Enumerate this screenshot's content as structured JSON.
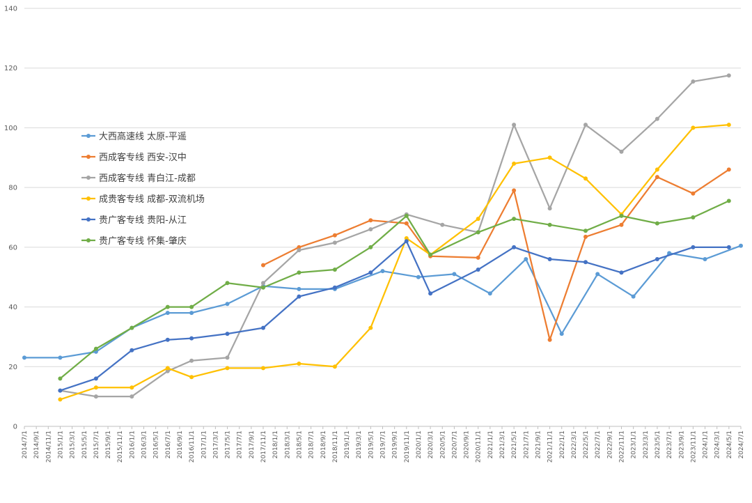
{
  "chart_data": {
    "type": "line",
    "title": "",
    "xlabel": "",
    "ylabel": "",
    "ylim": [
      0,
      140
    ],
    "yticks": [
      0,
      20,
      40,
      60,
      80,
      100,
      120,
      140
    ],
    "grid": true,
    "legend_position": "left",
    "x": [
      "2014/7/1",
      "2014/9/1",
      "2014/11/1",
      "2015/1/1",
      "2015/3/1",
      "2015/5/1",
      "2015/7/1",
      "2015/9/1",
      "2015/11/1",
      "2016/1/1",
      "2016/3/1",
      "2016/5/1",
      "2016/7/1",
      "2016/9/1",
      "2016/11/1",
      "2017/1/1",
      "2017/3/1",
      "2017/5/1",
      "2017/7/1",
      "2017/9/1",
      "2017/11/1",
      "2018/1/1",
      "2018/3/1",
      "2018/5/1",
      "2018/7/1",
      "2018/9/1",
      "2018/11/1",
      "2019/1/1",
      "2019/3/1",
      "2019/5/1",
      "2019/7/1",
      "2019/9/1",
      "2019/11/1",
      "2020/1/1",
      "2020/3/1",
      "2020/5/1",
      "2020/7/1",
      "2020/9/1",
      "2020/11/1",
      "2021/1/1",
      "2021/3/1",
      "2021/5/1",
      "2021/7/1",
      "2021/9/1",
      "2021/11/1",
      "2022/1/1",
      "2022/3/1",
      "2022/5/1",
      "2022/7/1",
      "2022/9/1",
      "2022/11/1",
      "2023/1/1",
      "2023/3/1",
      "2023/5/1",
      "2023/7/1",
      "2023/9/1",
      "2023/11/1",
      "2024/1/1",
      "2024/3/1",
      "2024/5/1",
      "2024/7/1"
    ],
    "series": [
      {
        "name": "大西高速线 太原-平遥",
        "color": "#5b9bd5",
        "points": [
          [
            "2014/7/1",
            23
          ],
          [
            "2015/1/1",
            23
          ],
          [
            "2015/7/1",
            25
          ],
          [
            "2016/1/1",
            33
          ],
          [
            "2016/7/1",
            38
          ],
          [
            "2016/11/1",
            38
          ],
          [
            "2017/5/1",
            41
          ],
          [
            "2017/11/1",
            47
          ],
          [
            "2018/5/1",
            46
          ],
          [
            "2018/11/1",
            46
          ],
          [
            "2019/7/1",
            52
          ],
          [
            "2020/1/1",
            50
          ],
          [
            "2020/7/1",
            51
          ],
          [
            "2021/1/1",
            44.5
          ],
          [
            "2021/7/1",
            56
          ],
          [
            "2022/1/1",
            31
          ],
          [
            "2022/7/1",
            51
          ],
          [
            "2023/1/1",
            43.5
          ],
          [
            "2023/7/1",
            58
          ],
          [
            "2024/1/1",
            56
          ],
          [
            "2024/7/1",
            60.5
          ]
        ]
      },
      {
        "name": "西成客专线 西安-汉中",
        "color": "#ed7d31",
        "points": [
          [
            "2017/11/1",
            54
          ],
          [
            "2018/5/1",
            60
          ],
          [
            "2018/11/1",
            64
          ],
          [
            "2019/5/1",
            69
          ],
          [
            "2019/11/1",
            68
          ],
          [
            "2020/3/1",
            57
          ],
          [
            "2020/11/1",
            56.5
          ],
          [
            "2021/5/1",
            79
          ],
          [
            "2021/11/1",
            29
          ],
          [
            "2022/5/1",
            63.5
          ],
          [
            "2022/11/1",
            67.5
          ],
          [
            "2023/5/1",
            83.5
          ],
          [
            "2023/11/1",
            78
          ],
          [
            "2024/5/1",
            86
          ]
        ]
      },
      {
        "name": "西成客专线 青白江-成都",
        "color": "#a5a5a5",
        "points": [
          [
            "2015/1/1",
            12
          ],
          [
            "2015/7/1",
            10
          ],
          [
            "2016/1/1",
            10
          ],
          [
            "2016/7/1",
            18.5
          ],
          [
            "2016/11/1",
            22
          ],
          [
            "2017/5/1",
            23
          ],
          [
            "2017/11/1",
            48
          ],
          [
            "2018/5/1",
            59
          ],
          [
            "2018/11/1",
            61.5
          ],
          [
            "2019/5/1",
            66
          ],
          [
            "2019/11/1",
            71
          ],
          [
            "2020/5/1",
            67.5
          ],
          [
            "2020/11/1",
            65
          ],
          [
            "2021/5/1",
            101
          ],
          [
            "2021/11/1",
            73
          ],
          [
            "2022/5/1",
            101
          ],
          [
            "2022/11/1",
            92
          ],
          [
            "2023/5/1",
            103
          ],
          [
            "2023/11/1",
            115.5
          ],
          [
            "2024/5/1",
            117.5
          ]
        ]
      },
      {
        "name": "成贵客专线 成都-双流机场",
        "color": "#ffc000",
        "points": [
          [
            "2015/1/1",
            9
          ],
          [
            "2015/7/1",
            13
          ],
          [
            "2016/1/1",
            13
          ],
          [
            "2016/7/1",
            19.5
          ],
          [
            "2016/11/1",
            16.5
          ],
          [
            "2017/5/1",
            19.5
          ],
          [
            "2017/11/1",
            19.5
          ],
          [
            "2018/5/1",
            21
          ],
          [
            "2018/11/1",
            20
          ],
          [
            "2019/5/1",
            33
          ],
          [
            "2019/11/1",
            63
          ],
          [
            "2020/3/1",
            57.5
          ],
          [
            "2020/11/1",
            69.5
          ],
          [
            "2021/5/1",
            88
          ],
          [
            "2021/11/1",
            90
          ],
          [
            "2022/5/1",
            83
          ],
          [
            "2022/11/1",
            71
          ],
          [
            "2023/5/1",
            86
          ],
          [
            "2023/11/1",
            100
          ],
          [
            "2024/5/1",
            101
          ]
        ]
      },
      {
        "name": "贵广客专线 贵阳-从江",
        "color": "#4472c4",
        "points": [
          [
            "2015/1/1",
            12
          ],
          [
            "2015/7/1",
            16
          ],
          [
            "2016/1/1",
            25.5
          ],
          [
            "2016/7/1",
            29
          ],
          [
            "2016/11/1",
            29.5
          ],
          [
            "2017/5/1",
            31
          ],
          [
            "2017/11/1",
            33
          ],
          [
            "2018/5/1",
            43.5
          ],
          [
            "2018/11/1",
            46.5
          ],
          [
            "2019/5/1",
            51.5
          ],
          [
            "2019/11/1",
            62
          ],
          [
            "2020/3/1",
            44.5
          ],
          [
            "2020/11/1",
            52.5
          ],
          [
            "2021/5/1",
            60
          ],
          [
            "2021/11/1",
            56
          ],
          [
            "2022/5/1",
            55
          ],
          [
            "2022/11/1",
            51.5
          ],
          [
            "2023/5/1",
            56
          ],
          [
            "2023/11/1",
            60
          ],
          [
            "2024/5/1",
            60
          ]
        ]
      },
      {
        "name": "贵广客专线 怀集-肇庆",
        "color": "#70ad47",
        "points": [
          [
            "2015/1/1",
            16
          ],
          [
            "2015/7/1",
            26
          ],
          [
            "2016/1/1",
            33
          ],
          [
            "2016/7/1",
            40
          ],
          [
            "2016/11/1",
            40
          ],
          [
            "2017/5/1",
            48
          ],
          [
            "2017/11/1",
            46.5
          ],
          [
            "2018/5/1",
            51.5
          ],
          [
            "2018/11/1",
            52.5
          ],
          [
            "2019/5/1",
            60
          ],
          [
            "2019/11/1",
            70.5
          ],
          [
            "2020/3/1",
            57.5
          ],
          [
            "2020/11/1",
            65
          ],
          [
            "2021/5/1",
            69.5
          ],
          [
            "2021/11/1",
            67.5
          ],
          [
            "2022/5/1",
            65.5
          ],
          [
            "2022/11/1",
            70.5
          ],
          [
            "2023/5/1",
            68
          ],
          [
            "2023/11/1",
            70
          ],
          [
            "2024/5/1",
            75.5
          ]
        ]
      }
    ]
  }
}
